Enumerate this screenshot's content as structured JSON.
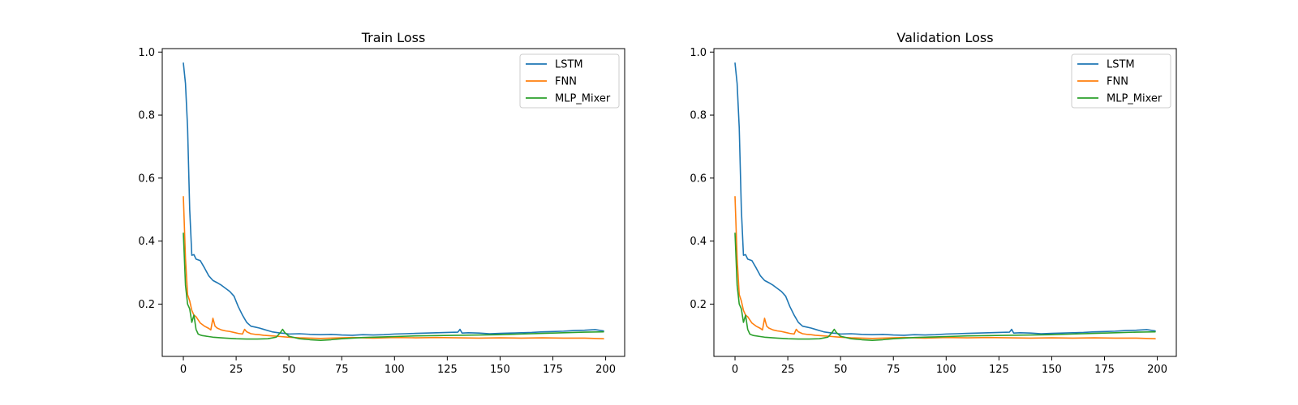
{
  "colors": {
    "LSTM": "#1f77b4",
    "FNN": "#ff7f0e",
    "MLP_Mixer": "#2ca02c"
  },
  "chart_data": [
    {
      "type": "line",
      "title": "Train Loss",
      "xlabel": "",
      "ylabel": "",
      "xlim": [
        -10,
        209
      ],
      "ylim": [
        0.034,
        1.011
      ],
      "xticks": [
        0,
        25,
        50,
        75,
        100,
        125,
        150,
        175,
        200
      ],
      "yticks": [
        0.2,
        0.4,
        0.6,
        0.8,
        1.0
      ],
      "ytick_labels": [
        "0.2",
        "0.4",
        "0.6",
        "0.8",
        "1.0"
      ],
      "grid": false,
      "legend_position": "upper right",
      "series": [
        {
          "name": "LSTM",
          "x": [
            0,
            1,
            2,
            3,
            4,
            5,
            6,
            8,
            10,
            12,
            14,
            16,
            18,
            20,
            22,
            24,
            26,
            28,
            30,
            32,
            34,
            36,
            38,
            40,
            42,
            44,
            46,
            48,
            50,
            55,
            60,
            65,
            70,
            75,
            80,
            85,
            90,
            95,
            100,
            105,
            110,
            115,
            120,
            125,
            130,
            131,
            132,
            135,
            140,
            145,
            150,
            155,
            160,
            165,
            170,
            175,
            180,
            185,
            190,
            195,
            199
          ],
          "y": [
            0.965,
            0.9,
            0.76,
            0.5,
            0.355,
            0.357,
            0.343,
            0.338,
            0.315,
            0.29,
            0.275,
            0.268,
            0.26,
            0.25,
            0.24,
            0.225,
            0.192,
            0.165,
            0.142,
            0.13,
            0.127,
            0.124,
            0.12,
            0.116,
            0.112,
            0.11,
            0.108,
            0.107,
            0.105,
            0.106,
            0.104,
            0.103,
            0.104,
            0.102,
            0.101,
            0.103,
            0.102,
            0.103,
            0.105,
            0.106,
            0.107,
            0.108,
            0.109,
            0.11,
            0.111,
            0.12,
            0.108,
            0.109,
            0.108,
            0.106,
            0.107,
            0.108,
            0.109,
            0.11,
            0.112,
            0.113,
            0.114,
            0.116,
            0.117,
            0.119,
            0.115
          ]
        },
        {
          "name": "FNN",
          "x": [
            0,
            1,
            2,
            3,
            4,
            5,
            6,
            8,
            10,
            12,
            13,
            14,
            15,
            16,
            18,
            20,
            22,
            24,
            26,
            28,
            29,
            30,
            32,
            34,
            36,
            38,
            40,
            42,
            44,
            46,
            48,
            50,
            55,
            60,
            65,
            70,
            75,
            80,
            85,
            90,
            95,
            100,
            110,
            120,
            130,
            140,
            150,
            160,
            170,
            180,
            190,
            199
          ],
          "y": [
            0.541,
            0.345,
            0.23,
            0.21,
            0.18,
            0.165,
            0.16,
            0.14,
            0.13,
            0.123,
            0.118,
            0.155,
            0.13,
            0.124,
            0.118,
            0.115,
            0.113,
            0.11,
            0.107,
            0.105,
            0.12,
            0.112,
            0.106,
            0.104,
            0.103,
            0.101,
            0.1,
            0.099,
            0.098,
            0.097,
            0.096,
            0.095,
            0.093,
            0.092,
            0.091,
            0.092,
            0.093,
            0.094,
            0.093,
            0.092,
            0.093,
            0.094,
            0.093,
            0.094,
            0.093,
            0.092,
            0.093,
            0.092,
            0.093,
            0.092,
            0.092,
            0.09
          ]
        },
        {
          "name": "MLP_Mixer",
          "x": [
            0,
            1,
            2,
            3,
            4,
            5,
            6,
            7,
            8,
            9,
            10,
            12,
            14,
            16,
            18,
            20,
            25,
            30,
            35,
            40,
            44,
            46,
            47,
            48,
            50,
            55,
            60,
            65,
            70,
            75,
            80,
            85,
            90,
            95,
            100,
            110,
            120,
            130,
            140,
            150,
            160,
            170,
            180,
            190,
            199
          ],
          "y": [
            0.425,
            0.26,
            0.2,
            0.185,
            0.142,
            0.165,
            0.12,
            0.105,
            0.102,
            0.1,
            0.099,
            0.097,
            0.095,
            0.094,
            0.093,
            0.092,
            0.09,
            0.089,
            0.089,
            0.09,
            0.095,
            0.11,
            0.12,
            0.11,
            0.098,
            0.09,
            0.087,
            0.085,
            0.087,
            0.09,
            0.092,
            0.094,
            0.095,
            0.096,
            0.097,
            0.099,
            0.1,
            0.101,
            0.102,
            0.103,
            0.105,
            0.107,
            0.109,
            0.111,
            0.112
          ]
        }
      ]
    },
    {
      "type": "line",
      "title": "Validation Loss",
      "xlabel": "",
      "ylabel": "",
      "xlim": [
        -10,
        209
      ],
      "ylim": [
        0.034,
        1.011
      ],
      "xticks": [
        0,
        25,
        50,
        75,
        100,
        125,
        150,
        175,
        200
      ],
      "yticks": [
        0.2,
        0.4,
        0.6,
        0.8,
        1.0
      ],
      "ytick_labels": [
        "0.2",
        "0.4",
        "0.6",
        "0.8",
        "1.0"
      ],
      "grid": false,
      "legend_position": "upper right",
      "series": [
        {
          "name": "LSTM",
          "x": [
            0,
            1,
            2,
            3,
            4,
            5,
            6,
            8,
            10,
            12,
            14,
            16,
            18,
            20,
            22,
            24,
            26,
            28,
            30,
            32,
            34,
            36,
            38,
            40,
            42,
            44,
            46,
            48,
            50,
            55,
            60,
            65,
            70,
            75,
            80,
            85,
            90,
            95,
            100,
            105,
            110,
            115,
            120,
            125,
            130,
            131,
            132,
            135,
            140,
            145,
            150,
            155,
            160,
            165,
            170,
            175,
            180,
            185,
            190,
            195,
            199
          ],
          "y": [
            0.965,
            0.9,
            0.76,
            0.5,
            0.355,
            0.357,
            0.343,
            0.338,
            0.315,
            0.29,
            0.275,
            0.268,
            0.26,
            0.25,
            0.24,
            0.225,
            0.192,
            0.165,
            0.142,
            0.13,
            0.127,
            0.124,
            0.12,
            0.116,
            0.112,
            0.11,
            0.108,
            0.107,
            0.105,
            0.106,
            0.104,
            0.103,
            0.104,
            0.102,
            0.101,
            0.103,
            0.102,
            0.103,
            0.105,
            0.106,
            0.107,
            0.108,
            0.109,
            0.11,
            0.111,
            0.12,
            0.108,
            0.109,
            0.108,
            0.106,
            0.107,
            0.108,
            0.109,
            0.11,
            0.112,
            0.113,
            0.114,
            0.116,
            0.117,
            0.119,
            0.115
          ]
        },
        {
          "name": "FNN",
          "x": [
            0,
            1,
            2,
            3,
            4,
            5,
            6,
            8,
            10,
            12,
            13,
            14,
            15,
            16,
            18,
            20,
            22,
            24,
            26,
            28,
            29,
            30,
            32,
            34,
            36,
            38,
            40,
            42,
            44,
            46,
            48,
            50,
            55,
            60,
            65,
            70,
            75,
            80,
            85,
            90,
            95,
            100,
            110,
            120,
            130,
            140,
            150,
            160,
            170,
            180,
            190,
            199
          ],
          "y": [
            0.541,
            0.345,
            0.23,
            0.21,
            0.18,
            0.165,
            0.16,
            0.14,
            0.13,
            0.123,
            0.118,
            0.155,
            0.13,
            0.124,
            0.118,
            0.115,
            0.113,
            0.11,
            0.107,
            0.105,
            0.12,
            0.112,
            0.106,
            0.104,
            0.103,
            0.101,
            0.1,
            0.099,
            0.098,
            0.097,
            0.096,
            0.095,
            0.093,
            0.092,
            0.091,
            0.092,
            0.093,
            0.094,
            0.093,
            0.092,
            0.093,
            0.094,
            0.093,
            0.094,
            0.093,
            0.092,
            0.093,
            0.092,
            0.093,
            0.092,
            0.092,
            0.09
          ]
        },
        {
          "name": "MLP_Mixer",
          "x": [
            0,
            1,
            2,
            3,
            4,
            5,
            6,
            7,
            8,
            9,
            10,
            12,
            14,
            16,
            18,
            20,
            25,
            30,
            35,
            40,
            44,
            46,
            47,
            48,
            50,
            55,
            60,
            65,
            70,
            75,
            80,
            85,
            90,
            95,
            100,
            110,
            120,
            130,
            140,
            150,
            160,
            170,
            180,
            190,
            199
          ],
          "y": [
            0.425,
            0.26,
            0.2,
            0.185,
            0.142,
            0.165,
            0.12,
            0.105,
            0.102,
            0.1,
            0.099,
            0.097,
            0.095,
            0.094,
            0.093,
            0.092,
            0.09,
            0.089,
            0.089,
            0.09,
            0.095,
            0.11,
            0.12,
            0.11,
            0.098,
            0.09,
            0.087,
            0.085,
            0.087,
            0.09,
            0.092,
            0.094,
            0.095,
            0.096,
            0.097,
            0.099,
            0.1,
            0.101,
            0.102,
            0.103,
            0.105,
            0.107,
            0.109,
            0.111,
            0.112
          ]
        }
      ]
    }
  ]
}
